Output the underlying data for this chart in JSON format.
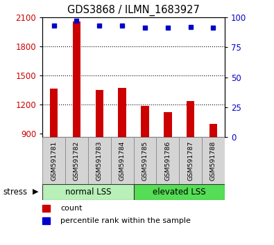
{
  "title": "GDS3868 / ILMN_1683927",
  "samples": [
    "GSM591781",
    "GSM591782",
    "GSM591783",
    "GSM591784",
    "GSM591785",
    "GSM591786",
    "GSM591787",
    "GSM591788"
  ],
  "counts": [
    1360,
    2055,
    1350,
    1370,
    1180,
    1120,
    1230,
    1000
  ],
  "percentiles": [
    93,
    97,
    93,
    93,
    91,
    91,
    92,
    91
  ],
  "bar_color": "#cc0000",
  "dot_color": "#0000cc",
  "ylim_left": [
    860,
    2100
  ],
  "ylim_right": [
    0,
    100
  ],
  "yticks_left": [
    900,
    1200,
    1500,
    1800,
    2100
  ],
  "yticks_right": [
    0,
    25,
    50,
    75,
    100
  ],
  "grid_lines": [
    1200,
    1500,
    1800
  ],
  "groups": [
    {
      "label": "normal LSS",
      "start": 0,
      "end": 4,
      "color": "#b8f0b8"
    },
    {
      "label": "elevated LSS",
      "start": 4,
      "end": 8,
      "color": "#55dd55"
    }
  ],
  "group_bar_color": "#d4d4d4",
  "stress_label": "stress",
  "legend": [
    {
      "label": "count",
      "color": "#cc0000"
    },
    {
      "label": "percentile rank within the sample",
      "color": "#0000cc"
    }
  ]
}
